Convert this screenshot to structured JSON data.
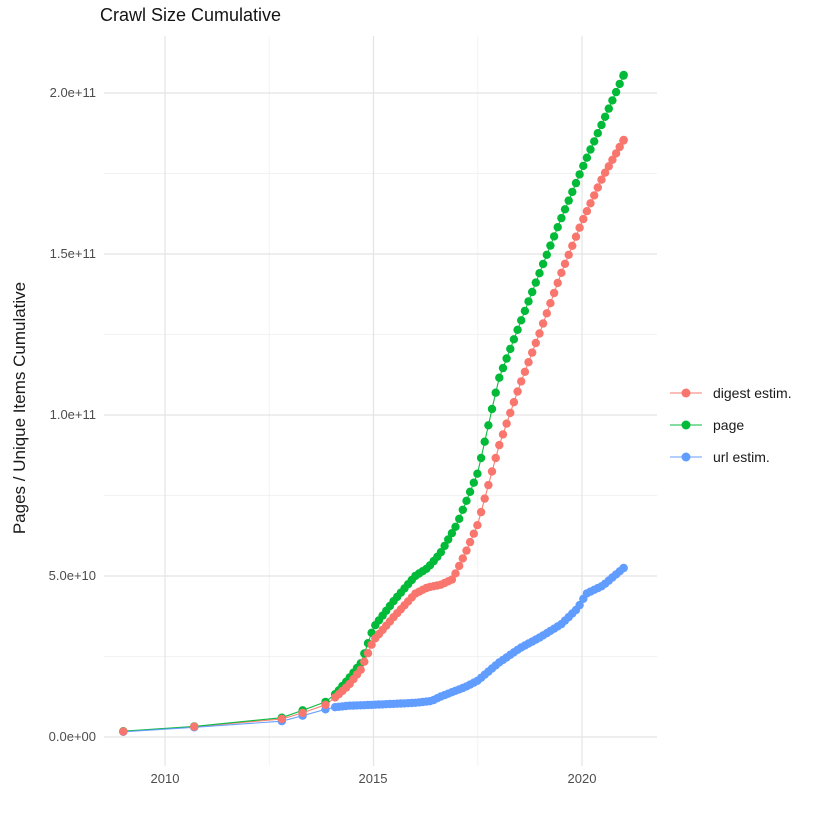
{
  "chart_data": {
    "type": "line",
    "title": "Crawl Size Cumulative",
    "xlabel": "",
    "ylabel": "Pages / Unique Items Cumulative",
    "x_tick_labels": [
      "2010",
      "2015",
      "2020"
    ],
    "x_ticks": [
      2010,
      2015,
      2020
    ],
    "x_minor_ticks": [
      2012.5,
      2017.5
    ],
    "y_tick_labels": [
      "0.0e+00",
      "5.0e+10",
      "1.0e+11",
      "1.5e+11",
      "2.0e+11"
    ],
    "y_tick_values": [
      0,
      50000000000.0,
      100000000000.0,
      150000000000.0,
      200000000000.0
    ],
    "y_minor_values": [
      25000000000.0,
      75000000000.0,
      125000000000.0,
      175000000000.0
    ],
    "xlim": [
      2008.55,
      2021.8
    ],
    "ylim": [
      0,
      217000000000.0
    ],
    "grid": true,
    "legend_position": "right",
    "sampling": {
      "sparse_years": [
        2009.0,
        2010.7,
        2012.8,
        2013.3,
        2013.85
      ],
      "dense_start": 2014.08,
      "dense_end": 2021.0,
      "dense_step": 0.0875
    },
    "series": [
      {
        "name": "digest estim.",
        "color": "#F8766D",
        "anchors": [
          [
            2009.0,
            1700000000.0
          ],
          [
            2010.7,
            3200000000.0
          ],
          [
            2012.8,
            5600000000.0
          ],
          [
            2013.3,
            7500000000.0
          ],
          [
            2013.85,
            10000000000.0
          ],
          [
            2014.1,
            12500000000.0
          ],
          [
            2014.4,
            16000000000.0
          ],
          [
            2014.7,
            21000000000.0
          ],
          [
            2015.0,
            30000000000.0
          ],
          [
            2015.5,
            37500000000.0
          ],
          [
            2016.0,
            44500000000.0
          ],
          [
            2016.3,
            46500000000.0
          ],
          [
            2016.6,
            47200000000.0
          ],
          [
            2016.9,
            49000000000.0
          ],
          [
            2017.2,
            57000000000.0
          ],
          [
            2017.5,
            66000000000.0
          ],
          [
            2018.0,
            90000000000.0
          ],
          [
            2018.5,
            109000000000.0
          ],
          [
            2019.0,
            126000000000.0
          ],
          [
            2019.5,
            144000000000.0
          ],
          [
            2020.0,
            160000000000.0
          ],
          [
            2020.5,
            174000000000.0
          ],
          [
            2021.0,
            185400000000.0
          ]
        ]
      },
      {
        "name": "page",
        "color": "#00BA38",
        "anchors": [
          [
            2009.0,
            1800000000.0
          ],
          [
            2010.7,
            3300000000.0
          ],
          [
            2012.8,
            6000000000.0
          ],
          [
            2013.3,
            8300000000.0
          ],
          [
            2013.85,
            10900000000.0
          ],
          [
            2014.1,
            13500000000.0
          ],
          [
            2014.4,
            18000000000.0
          ],
          [
            2014.7,
            23000000000.0
          ],
          [
            2015.0,
            34000000000.0
          ],
          [
            2015.5,
            42500000000.0
          ],
          [
            2016.0,
            50000000000.0
          ],
          [
            2016.3,
            52500000000.0
          ],
          [
            2016.6,
            57000000000.0
          ],
          [
            2017.0,
            66000000000.0
          ],
          [
            2017.5,
            82000000000.0
          ],
          [
            2018.0,
            111000000000.0
          ],
          [
            2018.5,
            128000000000.0
          ],
          [
            2019.0,
            144700000000.0
          ],
          [
            2019.5,
            161000000000.0
          ],
          [
            2020.0,
            176500000000.0
          ],
          [
            2020.5,
            191000000000.0
          ],
          [
            2021.0,
            205600000000.0
          ]
        ]
      },
      {
        "name": "url estim.",
        "color": "#619CFF",
        "anchors": [
          [
            2009.0,
            1600000000.0
          ],
          [
            2010.7,
            3000000000.0
          ],
          [
            2012.8,
            4900000000.0
          ],
          [
            2013.3,
            6600000000.0
          ],
          [
            2013.85,
            8600000000.0
          ],
          [
            2014.1,
            9300000000.0
          ],
          [
            2014.4,
            9700000000.0
          ],
          [
            2015.0,
            10000000000.0
          ],
          [
            2015.5,
            10300000000.0
          ],
          [
            2016.0,
            10600000000.0
          ],
          [
            2016.4,
            11200000000.0
          ],
          [
            2016.6,
            12500000000.0
          ],
          [
            2016.9,
            14000000000.0
          ],
          [
            2017.2,
            15500000000.0
          ],
          [
            2017.5,
            17500000000.0
          ],
          [
            2018.0,
            23000000000.0
          ],
          [
            2018.5,
            27500000000.0
          ],
          [
            2019.0,
            31000000000.0
          ],
          [
            2019.5,
            35000000000.0
          ],
          [
            2019.9,
            40000000000.0
          ],
          [
            2020.1,
            44500000000.0
          ],
          [
            2020.5,
            47000000000.0
          ],
          [
            2021.0,
            52500000000.0
          ]
        ]
      }
    ]
  }
}
